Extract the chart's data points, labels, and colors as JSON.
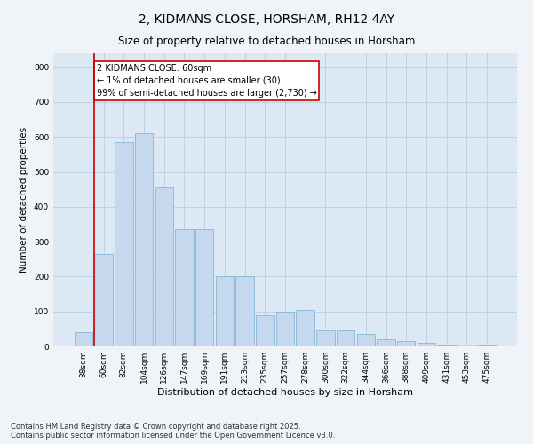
{
  "title": "2, KIDMANS CLOSE, HORSHAM, RH12 4AY",
  "subtitle": "Size of property relative to detached houses in Horsham",
  "xlabel": "Distribution of detached houses by size in Horsham",
  "ylabel": "Number of detached properties",
  "categories": [
    "38sqm",
    "60sqm",
    "82sqm",
    "104sqm",
    "126sqm",
    "147sqm",
    "169sqm",
    "191sqm",
    "213sqm",
    "235sqm",
    "257sqm",
    "278sqm",
    "300sqm",
    "322sqm",
    "344sqm",
    "366sqm",
    "388sqm",
    "409sqm",
    "431sqm",
    "453sqm",
    "475sqm"
  ],
  "values": [
    40,
    265,
    585,
    610,
    455,
    335,
    335,
    200,
    200,
    90,
    100,
    105,
    45,
    45,
    35,
    20,
    15,
    10,
    2,
    5,
    2
  ],
  "bar_color": "#c5d8ee",
  "bar_edge_color": "#7aafd4",
  "red_line_bar_index": 1,
  "annotation_text": "2 KIDMANS CLOSE: 60sqm\n← 1% of detached houses are smaller (30)\n99% of semi-detached houses are larger (2,730) →",
  "annotation_box_color": "#ffffff",
  "annotation_box_edge_color": "#cc0000",
  "annotation_fontsize": 7,
  "ylim": [
    0,
    840
  ],
  "yticks": [
    0,
    100,
    200,
    300,
    400,
    500,
    600,
    700,
    800
  ],
  "grid_color": "#b8cfe0",
  "bg_color": "#dce9f5",
  "footer": "Contains HM Land Registry data © Crown copyright and database right 2025.\nContains public sector information licensed under the Open Government Licence v3.0.",
  "title_fontsize": 10,
  "subtitle_fontsize": 8.5,
  "xlabel_fontsize": 8,
  "ylabel_fontsize": 7.5,
  "tick_fontsize": 6.5,
  "footer_fontsize": 6
}
